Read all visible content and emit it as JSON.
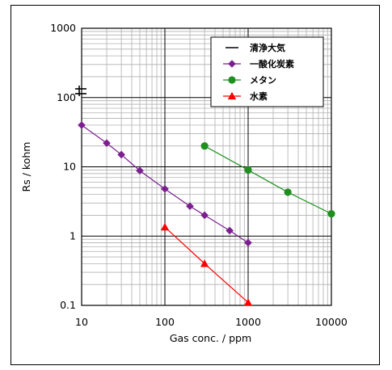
{
  "chart_data": {
    "type": "scatter",
    "title": "",
    "xlabel": "Gas conc. / ppm",
    "ylabel": "Rs / kohm",
    "x_scale": "log",
    "y_scale": "log",
    "xlim": [
      10,
      10000
    ],
    "ylim": [
      0.1,
      1000
    ],
    "x_ticks": [
      "10",
      "100",
      "1000",
      "10000"
    ],
    "y_ticks": [
      "0.1",
      "1",
      "10",
      "100",
      "1000"
    ],
    "grid": true,
    "legend_position": "top-right",
    "series": [
      {
        "name": "清浄大気",
        "color": "#000000",
        "marker": "line",
        "y_value": 120
      },
      {
        "name": "一酸化炭素",
        "color": "#7b1f8f",
        "marker": "diamond",
        "x": [
          10,
          20,
          30,
          50,
          100,
          200,
          300,
          600,
          1000
        ],
        "y": [
          40,
          22,
          15,
          8.8,
          4.8,
          2.7,
          2.0,
          1.2,
          0.8
        ]
      },
      {
        "name": "メタン",
        "color": "#1f8f1f",
        "marker": "circle",
        "x": [
          300,
          1000,
          3000,
          10000
        ],
        "y": [
          20,
          9,
          4.3,
          2.1
        ]
      },
      {
        "name": "水素",
        "color": "#ff0000",
        "marker": "triangle",
        "x": [
          100,
          300,
          1000
        ],
        "y": [
          1.35,
          0.4,
          0.11
        ]
      }
    ]
  }
}
